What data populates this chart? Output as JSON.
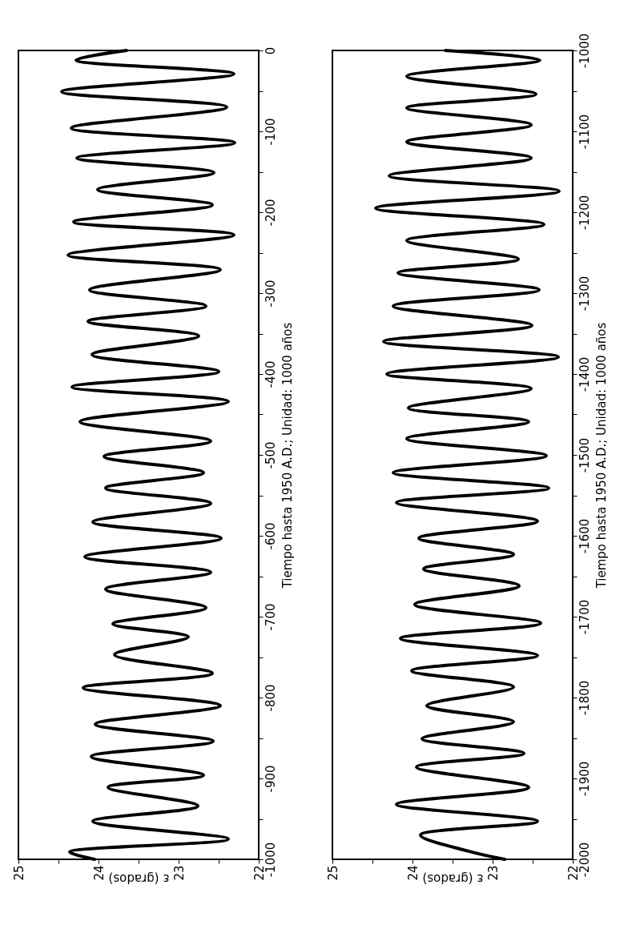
{
  "chart_data": [
    {
      "type": "line",
      "ylabel": "Tiempo hasta 1950 A.D.; Unidad: 1000 años",
      "xlabel": "ε (grados)",
      "ylim": [
        -1000,
        0
      ],
      "xlim": [
        25,
        22
      ],
      "grid": false,
      "line_style": "solid",
      "yticks": [
        -1000,
        {
          "value": -950,
          "label": null
        },
        -900,
        {
          "value": -850,
          "label": null
        },
        -800,
        {
          "value": -750,
          "label": null
        },
        -700,
        {
          "value": -650,
          "label": null
        },
        -600,
        {
          "value": -550,
          "label": null
        },
        -500,
        {
          "value": -450,
          "label": null
        },
        -400,
        {
          "value": -350,
          "label": null
        },
        -300,
        {
          "value": -250,
          "label": null
        },
        -200,
        {
          "value": -150,
          "label": null
        },
        -100,
        {
          "value": -50,
          "label": null
        },
        0
      ],
      "xticks": [
        25,
        {
          "value": 24.5,
          "label": null
        },
        24,
        {
          "value": 23.5,
          "label": null
        },
        23,
        {
          "value": 22.5,
          "label": null
        },
        22
      ],
      "series": [
        {
          "color": "#000000",
          "values": [
            0,
            -12,
            -29,
            -51,
            -70,
            -96,
            -114,
            -133,
            -151,
            -172,
            -191,
            -212,
            -228,
            -253,
            -271,
            -296,
            -316,
            -335,
            -353,
            -376,
            -397,
            -416,
            -434,
            -459,
            -483,
            -502,
            -522,
            -541,
            -560,
            -583,
            -603,
            -626,
            -645,
            -666,
            -689,
            -709,
            -725,
            -747,
            -770,
            -788,
            -810,
            -833,
            -854,
            -873,
            -896,
            -911,
            -934,
            -953,
            -975,
            -991,
            -1000
          ],
          "x": [
            23.65,
            24.28,
            22.31,
            24.46,
            22.4,
            24.34,
            22.3,
            24.27,
            22.56,
            24.01,
            22.58,
            24.31,
            22.31,
            24.38,
            22.48,
            24.11,
            22.66,
            24.13,
            22.75,
            24.08,
            22.5,
            24.33,
            22.38,
            24.23,
            22.6,
            23.93,
            22.69,
            23.91,
            22.6,
            24.07,
            22.47,
            24.17,
            22.6,
            23.91,
            22.66,
            23.82,
            22.88,
            23.8,
            22.58,
            24.19,
            22.48,
            24.04,
            22.57,
            24.09,
            22.69,
            23.88,
            22.76,
            24.07,
            22.38,
            24.36,
            24.05
          ]
        }
      ]
    },
    {
      "type": "line",
      "ylabel": "Tiempo hasta 1950 A.D.; Unidad: 1000 años",
      "xlabel": "ε (grados)",
      "ylim": [
        -2000,
        -1000
      ],
      "xlim": [
        25,
        22
      ],
      "grid": false,
      "line_style": "solid",
      "yticks": [
        -2000,
        {
          "value": -1950,
          "label": null
        },
        -1900,
        {
          "value": -1850,
          "label": null
        },
        -1800,
        {
          "value": -1750,
          "label": null
        },
        -1700,
        {
          "value": -1650,
          "label": null
        },
        -1600,
        {
          "value": -1550,
          "label": null
        },
        -1500,
        {
          "value": -1450,
          "label": null
        },
        -1400,
        {
          "value": -1350,
          "label": null
        },
        -1300,
        {
          "value": -1250,
          "label": null
        },
        -1200,
        {
          "value": -1150,
          "label": null
        },
        -1100,
        {
          "value": -1050,
          "label": null
        },
        -1000
      ],
      "xticks": [
        25,
        {
          "value": 24.5,
          "label": null
        },
        24,
        {
          "value": 23.5,
          "label": null
        },
        23,
        {
          "value": 22.5,
          "label": null
        },
        22
      ],
      "series": [
        {
          "color": "#000000",
          "values": [
            -1000,
            -1012,
            -1032,
            -1054,
            -1071,
            -1092,
            -1113,
            -1133,
            -1155,
            -1174,
            -1195,
            -1215,
            -1235,
            -1258,
            -1275,
            -1296,
            -1316,
            -1340,
            -1360,
            -1379,
            -1400,
            -1418,
            -1442,
            -1459,
            -1480,
            -1501,
            -1522,
            -1541,
            -1559,
            -1582,
            -1603,
            -1623,
            -1641,
            -1662,
            -1685,
            -1708,
            -1727,
            -1748,
            -1767,
            -1787,
            -1810,
            -1830,
            -1851,
            -1869,
            -1886,
            -1911,
            -1932,
            -1953,
            -1970,
            -1990,
            -2000
          ],
          "x": [
            23.59,
            22.41,
            24.07,
            22.46,
            24.07,
            22.52,
            24.07,
            22.52,
            24.29,
            22.17,
            24.46,
            22.36,
            24.07,
            22.68,
            24.18,
            22.42,
            24.24,
            22.51,
            24.36,
            22.18,
            24.32,
            22.52,
            24.05,
            22.55,
            24.07,
            22.33,
            24.24,
            22.3,
            24.2,
            22.44,
            23.92,
            22.74,
            23.86,
            22.67,
            23.97,
            22.4,
            24.15,
            22.44,
            24.01,
            22.74,
            23.82,
            22.74,
            23.88,
            22.61,
            23.95,
            22.55,
            24.2,
            22.44,
            23.9,
            23.3,
            22.85
          ]
        }
      ]
    }
  ]
}
